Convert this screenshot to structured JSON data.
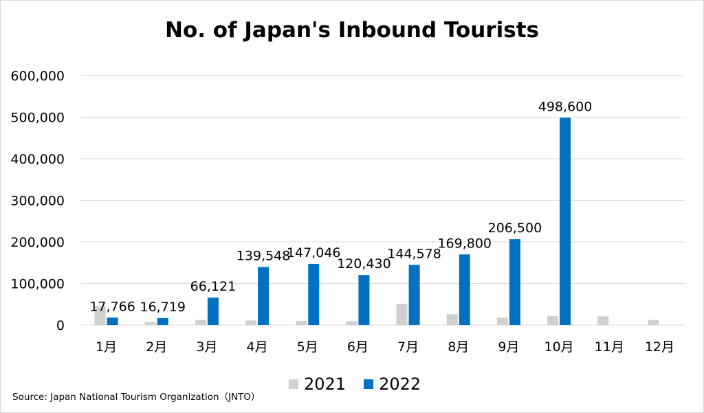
{
  "chart_data": {
    "type": "bar",
    "title": "No. of Japan's Inbound Tourists",
    "categories": [
      "1月",
      "2月",
      "3月",
      "4月",
      "5月",
      "6月",
      "7月",
      "8月",
      "9月",
      "10月",
      "11月",
      "12月"
    ],
    "series": [
      {
        "name": "2021",
        "color": "#d0d0d0",
        "values": [
          46500,
          7400,
          12300,
          10900,
          10000,
          9300,
          51100,
          25900,
          17700,
          22100,
          20700,
          12100
        ]
      },
      {
        "name": "2022",
        "color": "#0070c0",
        "values": [
          17766,
          16719,
          66121,
          139548,
          147046,
          120430,
          144578,
          169800,
          206500,
          498600,
          null,
          null
        ],
        "labels": [
          "17,766",
          "16,719",
          "66,121",
          "139,548",
          "147,046",
          "120,430",
          "144,578",
          "169,800",
          "206,500",
          "498,600",
          "",
          ""
        ]
      }
    ],
    "ylim": [
      0,
      600000
    ],
    "yticks": [
      "0",
      "100,000",
      "200,000",
      "300,000",
      "400,000",
      "500,000",
      "600,000"
    ],
    "grid": true,
    "legend_position": "bottom"
  },
  "source": "Source: Japan National Tourism Organization（JNTO）"
}
